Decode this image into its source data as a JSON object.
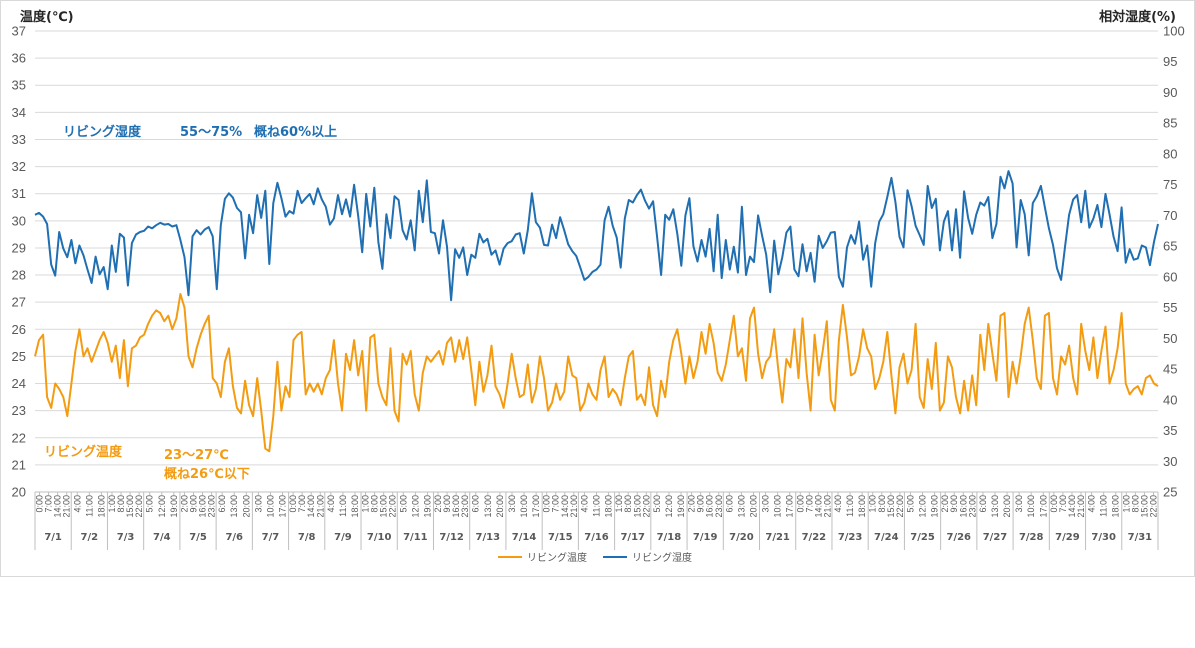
{
  "chart_data": {
    "type": "line",
    "y_left_title": "温度(℃)",
    "y_right_title": "相対湿度(%)",
    "ylim_left": [
      20,
      37
    ],
    "ylim_right": [
      25,
      100
    ],
    "yticks_left": [
      "20",
      "21",
      "22",
      "23",
      "24",
      "25",
      "26",
      "27",
      "28",
      "29",
      "30",
      "31",
      "32",
      "33",
      "34",
      "35",
      "36",
      "37"
    ],
    "yticks_right": [
      "25",
      "30",
      "35",
      "40",
      "45",
      "50",
      "55",
      "60",
      "65",
      "70",
      "75",
      "80",
      "85",
      "90",
      "95",
      "100"
    ],
    "days": [
      "7/1",
      "7/2",
      "7/3",
      "7/4",
      "7/5",
      "7/6",
      "7/7",
      "7/8",
      "7/9",
      "7/10",
      "7/11",
      "7/12",
      "7/13",
      "7/14",
      "7/15",
      "7/16",
      "7/17",
      "7/18",
      "7/19",
      "7/20",
      "7/21",
      "7/22",
      "7/23",
      "7/24",
      "7/25",
      "7/26",
      "7/27",
      "7/28",
      "7/29",
      "7/30",
      "7/31"
    ],
    "time_ticks": [
      [
        "0:00",
        "7:00",
        "14:00",
        "21:00"
      ],
      [
        "4:00",
        "11:00",
        "18:00"
      ],
      [
        "1:00",
        "8:00",
        "15:00",
        "22:00"
      ],
      [
        "5:00",
        "12:00",
        "19:00"
      ],
      [
        "2:00",
        "9:00",
        "16:00",
        "23:00"
      ],
      [
        "6:00",
        "13:00",
        "20:00"
      ],
      [
        "3:00",
        "10:00",
        "17:00"
      ],
      [
        "0:00",
        "7:00",
        "14:00",
        "21:00"
      ],
      [
        "4:00",
        "11:00",
        "18:00"
      ],
      [
        "1:00",
        "8:00",
        "15:00",
        "22:00"
      ],
      [
        "5:00",
        "12:00",
        "19:00"
      ],
      [
        "2:00",
        "9:00",
        "16:00",
        "23:00"
      ],
      [
        "6:00",
        "13:00",
        "20:00"
      ],
      [
        "3:00",
        "10:00",
        "17:00"
      ],
      [
        "0:00",
        "7:00",
        "14:00",
        "21:00"
      ],
      [
        "4:00",
        "11:00",
        "18:00"
      ],
      [
        "1:00",
        "8:00",
        "15:00",
        "22:00"
      ],
      [
        "5:00",
        "12:00",
        "19:00"
      ],
      [
        "2:00",
        "9:00",
        "16:00",
        "23:00"
      ],
      [
        "6:00",
        "13:00",
        "20:00"
      ],
      [
        "3:00",
        "10:00",
        "17:00"
      ],
      [
        "0:00",
        "7:00",
        "14:00",
        "21:00"
      ],
      [
        "4:00",
        "11:00",
        "18:00"
      ],
      [
        "1:00",
        "8:00",
        "15:00",
        "22:00"
      ],
      [
        "5:00",
        "12:00",
        "19:00"
      ],
      [
        "2:00",
        "9:00",
        "16:00",
        "23:00"
      ],
      [
        "6:00",
        "13:00",
        "20:00"
      ],
      [
        "3:00",
        "10:00",
        "17:00"
      ],
      [
        "0:00",
        "7:00",
        "14:00",
        "21:00"
      ],
      [
        "4:00",
        "11:00",
        "18:00"
      ],
      [
        "1:00",
        "8:00",
        "15:00",
        "22:00"
      ]
    ],
    "series": [
      {
        "name": "リビング温度",
        "axis": "left",
        "color": "#f39c12",
        "values": [
          [
            25.0,
            25.6,
            25.8,
            23.5,
            23.1,
            24.0,
            23.8,
            23.5,
            22.8
          ],
          [
            24.0,
            25.2,
            26.0,
            25.0,
            25.3,
            24.8,
            25.2,
            25.6,
            25.9
          ],
          [
            25.5,
            24.8,
            25.4,
            24.2,
            25.6,
            23.9,
            25.3,
            25.4,
            25.7
          ],
          [
            25.8,
            26.2,
            26.5,
            26.7,
            26.6,
            26.3,
            26.5,
            26.0,
            26.4
          ],
          [
            27.3,
            26.8,
            25.0,
            24.6,
            25.3,
            25.8,
            26.2,
            26.5,
            24.2
          ],
          [
            24.0,
            23.5,
            24.8,
            25.3,
            23.9,
            23.1,
            22.9,
            24.1,
            23.2
          ],
          [
            22.8,
            24.2,
            23.0,
            21.6,
            21.5,
            22.8,
            24.8,
            23.0,
            23.9
          ],
          [
            23.5,
            25.6,
            25.8,
            25.9,
            23.6,
            24.0,
            23.7,
            24.0,
            23.6
          ],
          [
            24.2,
            24.5,
            25.6,
            24.0,
            23.0,
            25.1,
            24.5,
            25.6,
            24.3
          ],
          [
            25.2,
            23.0,
            25.7,
            25.8,
            24.0,
            23.5,
            23.2,
            25.3,
            23.0
          ],
          [
            22.6,
            25.1,
            24.7,
            25.2,
            23.6,
            23.0,
            24.4,
            25.0,
            24.8
          ],
          [
            25.0,
            25.2,
            24.7,
            25.5,
            25.7,
            24.8,
            25.6,
            24.9,
            25.7
          ],
          [
            24.5,
            23.2,
            24.8,
            23.7,
            24.3,
            25.4,
            23.9,
            23.6,
            23.1
          ],
          [
            24.0,
            25.1,
            24.2,
            23.5,
            23.6,
            24.7,
            23.3,
            23.8,
            25.0
          ],
          [
            24.2,
            23.0,
            23.3,
            24.0,
            23.4,
            23.7,
            25.0,
            24.3,
            24.2
          ],
          [
            23.0,
            23.3,
            24.0,
            23.6,
            23.4,
            24.5,
            25.0,
            23.5,
            23.8
          ],
          [
            23.6,
            23.2,
            24.2,
            25.0,
            25.2,
            23.4,
            23.6,
            23.2,
            24.6
          ],
          [
            23.2,
            22.8,
            24.1,
            23.5,
            24.8,
            25.6,
            26.0,
            25.1,
            24.0
          ],
          [
            25.0,
            24.2,
            24.8,
            25.9,
            25.1,
            26.2,
            25.5,
            24.4,
            24.1
          ],
          [
            24.7,
            25.6,
            26.5,
            25.0,
            25.3,
            24.1,
            26.4,
            26.8,
            25.1
          ],
          [
            24.2,
            24.8,
            25.0,
            26.0,
            24.5,
            23.3,
            24.9,
            24.6,
            26.0
          ],
          [
            24.2,
            26.4,
            24.4,
            23.0,
            25.8,
            24.3,
            25.2,
            26.3,
            23.4
          ],
          [
            23.0,
            25.6,
            26.9,
            25.7,
            24.3,
            24.4,
            25.0,
            26.0,
            25.3
          ],
          [
            25.0,
            23.8,
            24.2,
            24.8,
            25.9,
            24.3,
            22.9,
            24.6,
            25.1
          ],
          [
            24.0,
            24.5,
            26.2,
            23.5,
            23.1,
            24.9,
            23.8,
            25.5,
            23.0
          ],
          [
            23.3,
            25.0,
            24.6,
            23.5,
            22.9,
            24.1,
            23.0,
            24.3,
            23.2
          ],
          [
            25.8,
            24.5,
            26.2,
            25.1,
            24.1,
            26.5,
            26.6,
            23.5,
            24.8
          ],
          [
            24.0,
            25.0,
            26.2,
            26.8,
            25.6,
            24.2,
            23.8,
            26.5,
            26.6
          ],
          [
            24.2,
            23.6,
            25.0,
            24.7,
            25.4,
            24.2,
            23.6,
            26.2,
            25.2
          ],
          [
            24.5,
            25.7,
            24.2,
            25.2,
            26.1,
            24.0,
            24.5,
            25.3,
            26.6
          ],
          [
            24.0,
            23.6,
            23.8,
            23.9,
            23.6,
            24.2,
            24.3,
            24.0,
            23.9
          ]
        ]
      },
      {
        "name": "リビング湿度",
        "axis": "right",
        "color": "#1f6fb2",
        "values": [
          [
            70.1,
            70.4,
            69.8,
            68.6,
            62.0,
            60.2,
            67.3,
            64.6,
            63.2
          ],
          [
            66.0,
            62.2,
            65.1,
            63.5,
            61.2,
            59.0,
            63.3,
            60.4,
            61.6
          ],
          [
            58.0,
            65.1,
            60.8,
            67.0,
            66.4,
            58.6,
            65.5,
            66.9,
            67.3
          ],
          [
            67.5,
            68.2,
            67.9,
            68.4,
            68.8,
            68.5,
            68.6,
            68.2,
            68.4
          ],
          [
            66.0,
            63.2,
            57.0,
            66.6,
            67.6,
            66.9,
            67.7,
            68.1,
            66.6
          ],
          [
            58.0,
            68.4,
            72.7,
            73.6,
            72.9,
            71.2,
            70.5,
            63.0,
            70.1
          ],
          [
            67.1,
            73.3,
            69.6,
            74.0,
            62.1,
            72.0,
            75.3,
            72.8,
            69.8
          ],
          [
            70.7,
            70.3,
            74.0,
            72.0,
            72.8,
            73.5,
            71.8,
            74.4,
            72.6
          ],
          [
            71.4,
            68.5,
            69.5,
            73.3,
            70.2,
            72.6,
            69.8,
            75.0,
            69.9
          ],
          [
            64.0,
            73.5,
            68.2,
            74.5,
            65.6,
            61.3,
            70.2,
            66.3,
            73.1
          ],
          [
            72.5,
            67.6,
            66.1,
            69.2,
            64.3,
            74.0,
            68.9,
            75.7,
            67.3
          ],
          [
            67.1,
            63.8,
            69.2,
            64.9,
            56.2,
            64.5,
            63.1,
            64.8,
            60.3
          ],
          [
            63.6,
            63.1,
            67.0,
            65.6,
            66.2,
            63.6,
            64.3,
            62.0,
            64.6
          ],
          [
            65.5,
            65.8,
            66.9,
            67.1,
            63.8,
            67.6,
            73.6,
            68.9,
            68.0
          ],
          [
            65.2,
            65.1,
            68.5,
            66.3,
            69.7,
            67.6,
            65.3,
            64.2,
            63.4
          ],
          [
            61.5,
            59.5,
            60.0,
            60.8,
            61.2,
            62.0,
            69.2,
            71.4,
            68.3
          ],
          [
            66.4,
            61.5,
            69.5,
            72.5,
            72.1,
            73.3,
            74.2,
            72.4,
            71.1
          ],
          [
            72.3,
            66.5,
            60.3,
            70.1,
            69.3,
            71.0,
            67.0,
            61.8,
            70.0
          ],
          [
            72.8,
            65.0,
            62.5,
            66.0,
            63.3,
            67.8,
            60.9,
            70.1,
            59.8
          ],
          [
            66.0,
            61.2,
            64.9,
            60.7,
            71.4,
            60.3,
            63.3,
            62.4,
            70.0
          ],
          [
            66.7,
            63.6,
            57.5,
            65.9,
            60.4,
            63.2,
            67.2,
            68.2,
            61.2
          ],
          [
            60.1,
            65.3,
            60.9,
            63.9,
            59.2,
            66.7,
            64.7,
            65.8,
            67.2
          ],
          [
            67.3,
            60.0,
            58.4,
            64.8,
            66.8,
            65.4,
            69.0,
            62.8,
            65.1
          ],
          [
            58.4,
            65.5,
            69.0,
            70.2,
            73.0,
            76.1,
            72.2,
            66.5,
            64.8
          ],
          [
            74.1,
            71.5,
            68.3,
            66.8,
            65.2,
            74.8,
            71.2,
            72.7,
            64.3
          ],
          [
            69.0,
            70.7,
            64.3,
            71.0,
            63.1,
            73.9,
            69.6,
            67.0,
            70.1
          ],
          [
            72.1,
            71.6,
            73.0,
            66.3,
            68.6,
            76.3,
            74.4,
            77.2,
            75.2
          ],
          [
            64.8,
            72.5,
            70.2,
            63.5,
            72.0,
            73.1,
            74.8,
            71.3,
            67.9
          ],
          [
            65.2,
            61.4,
            59.5,
            65.0,
            70.1,
            72.6,
            73.3,
            68.9,
            74.0
          ],
          [
            68.0,
            69.5,
            71.7,
            68.1,
            73.5,
            70.2,
            66.5,
            64.2,
            71.3
          ],
          [
            62.3,
            64.5,
            62.8,
            63.0,
            65.1,
            64.8,
            61.9,
            65.7,
            68.6
          ]
        ]
      }
    ],
    "annotations": {
      "humidity_label": "リビング湿度",
      "humidity_range": "55～75%",
      "humidity_note": "概ね60%以上",
      "temp_label": "リビング温度",
      "temp_range": "23～27℃",
      "temp_note": "概ね26℃以下"
    },
    "legend": {
      "position": "bottom",
      "items": [
        "リビング温度",
        "リビング湿度"
      ]
    }
  }
}
